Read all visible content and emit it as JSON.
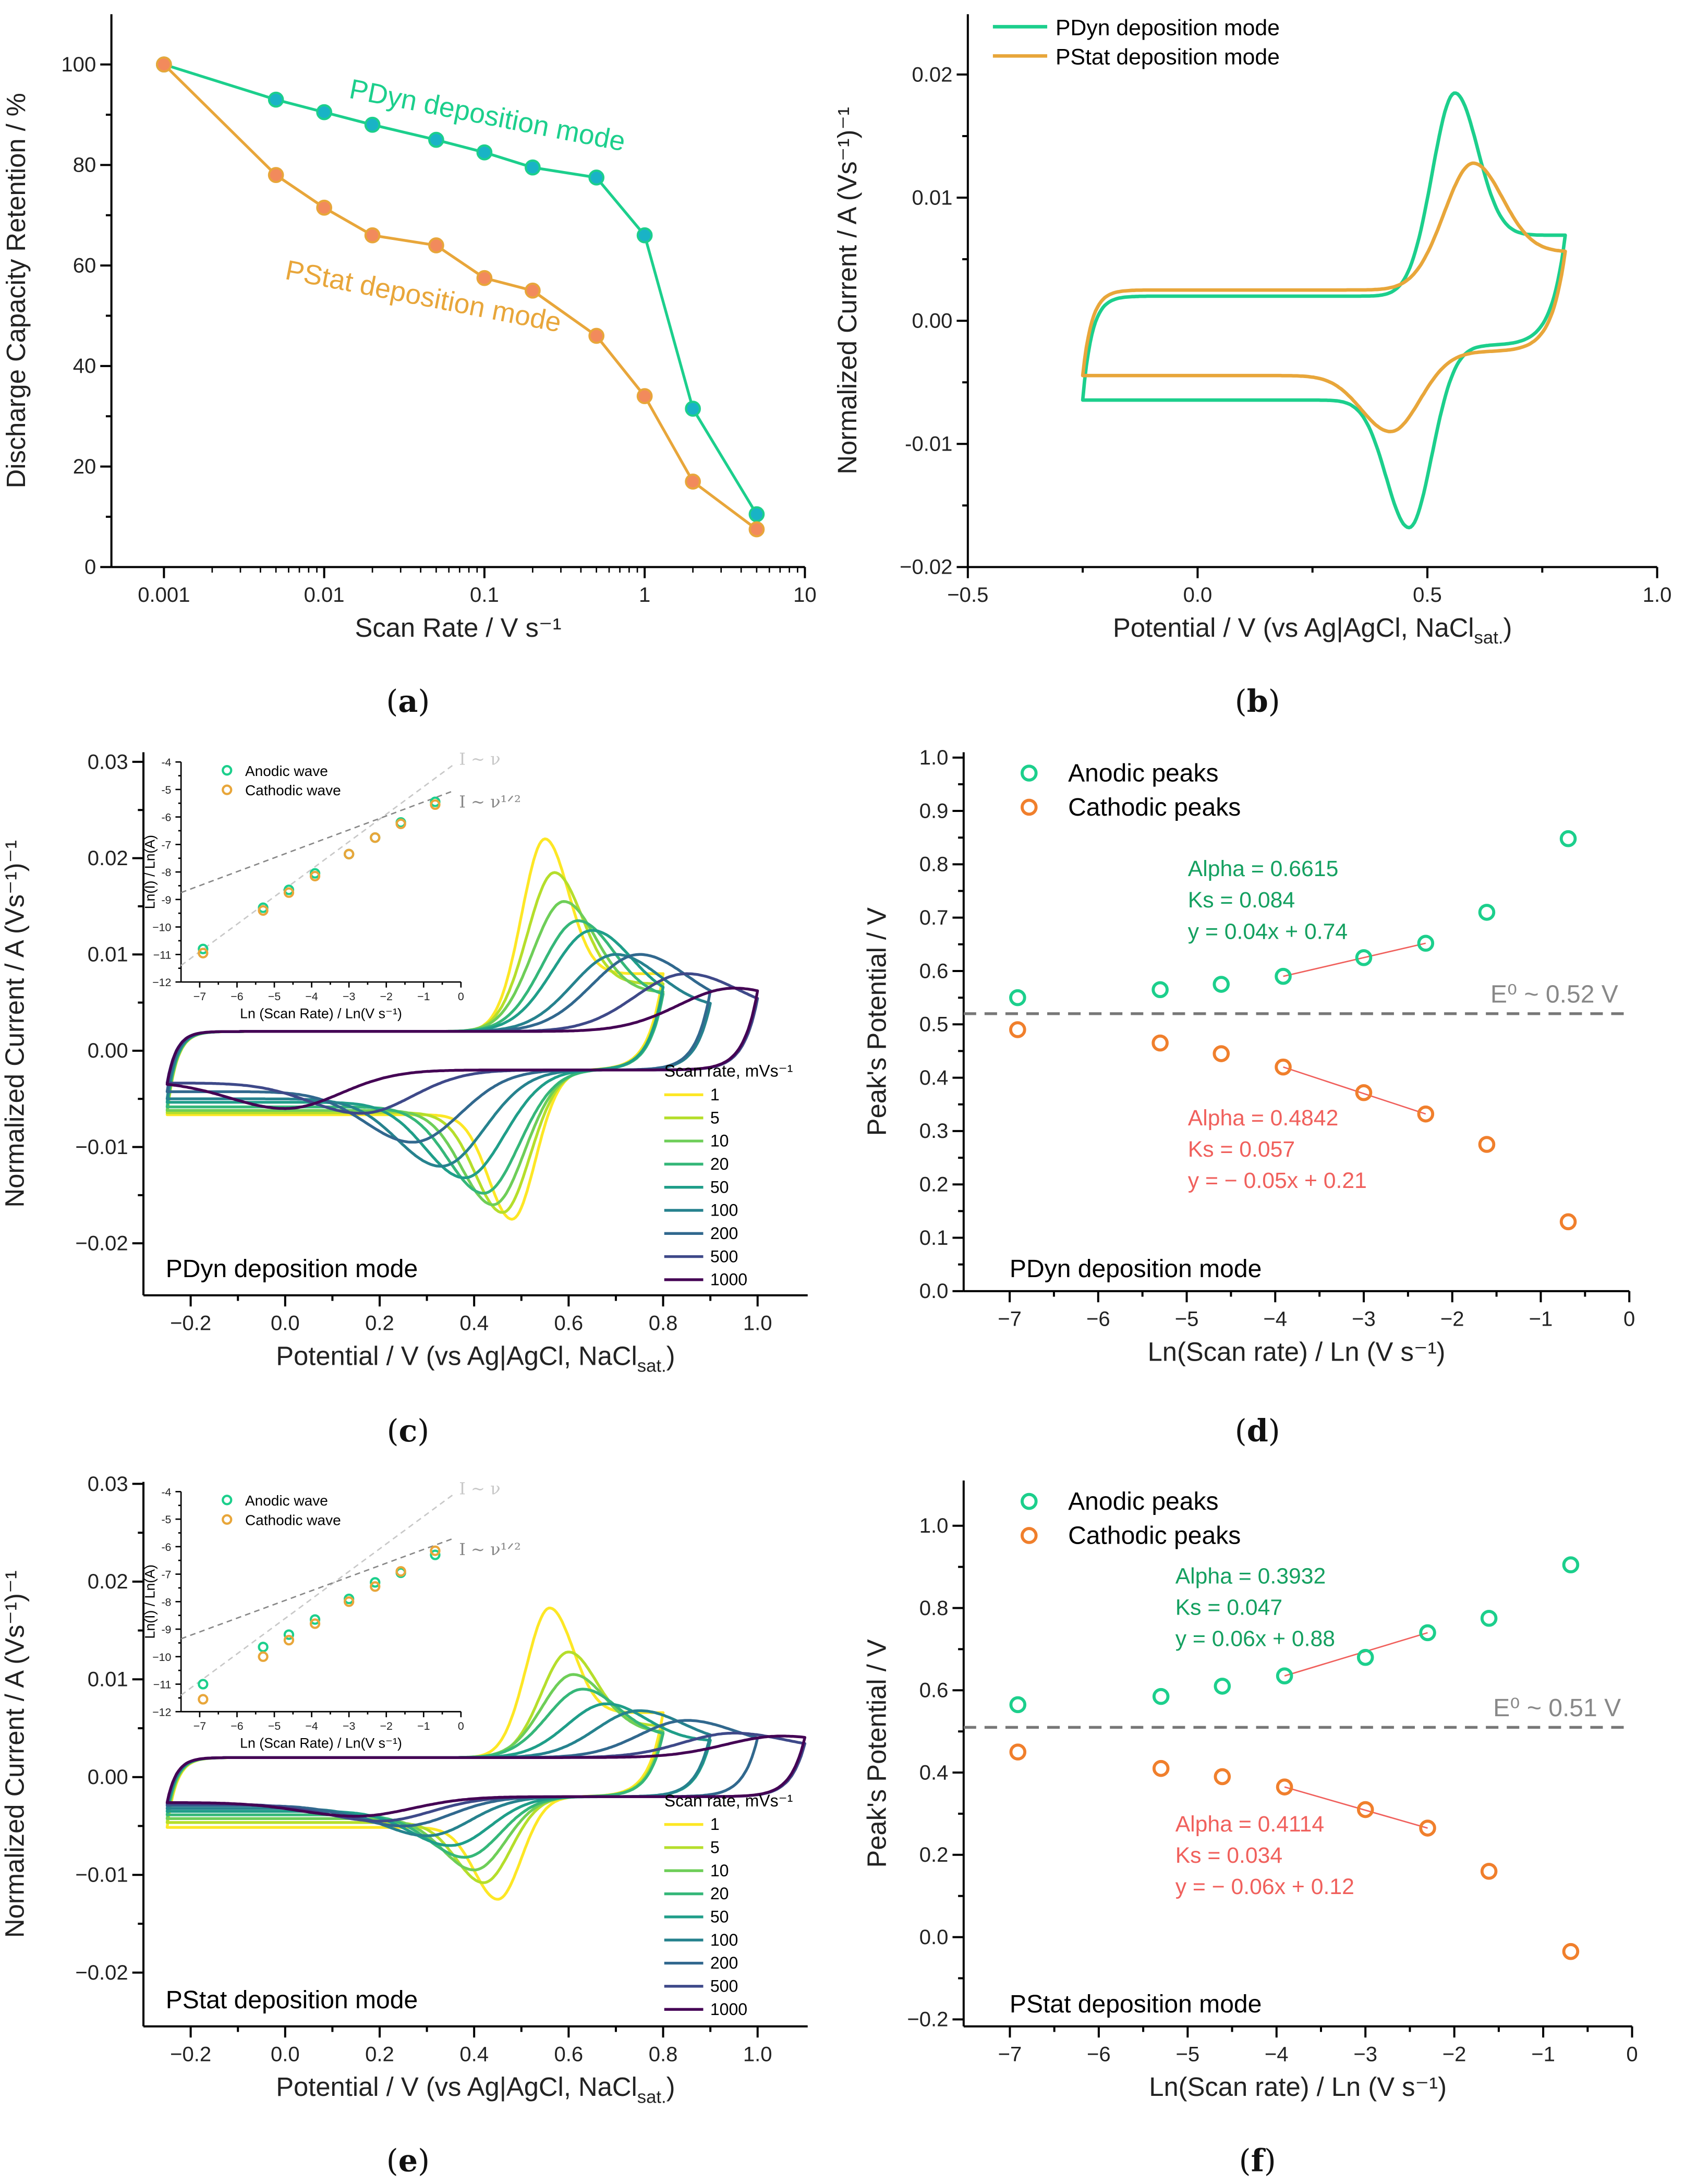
{
  "chart_data": [
    {
      "panel": [
        "(",
        "a",
        ")"
      ],
      "type": "line",
      "xscale": "log",
      "xlim": [
        0.00047,
        10
      ],
      "ylim": [
        0,
        110
      ],
      "xticks": [
        0.001,
        0.01,
        0.1,
        1,
        10
      ],
      "xtick_labels": [
        "0.001",
        "0.01",
        "0.1",
        "1",
        "10"
      ],
      "yticks": [
        0,
        20,
        40,
        60,
        80,
        100
      ],
      "ytick_labels": [
        "0",
        "20",
        "40",
        "60",
        "80",
        "100"
      ],
      "xlabel": "Scan Rate / V s⁻¹",
      "ylabel": "Discharge Capacity Retention / %",
      "x": [
        0.001,
        0.005,
        0.01,
        0.02,
        0.05,
        0.1,
        0.2,
        0.5,
        1,
        2,
        5
      ],
      "series": [
        {
          "name": "PDyn deposition mode",
          "color": "#1ccf8c",
          "marker_fill": "#19b3c6",
          "values": [
            100,
            93,
            90.5,
            88,
            85,
            82.5,
            79.5,
            77.5,
            66,
            31.5,
            10.5
          ]
        },
        {
          "name": "PStat deposition mode",
          "color": "#e8a63a",
          "marker_fill": "#f28a5c",
          "values": [
            100,
            78,
            71.5,
            66,
            64,
            57.5,
            55,
            46,
            34,
            17,
            7.5
          ]
        }
      ]
    },
    {
      "panel": [
        "(",
        "b",
        ")"
      ],
      "type": "line",
      "xlim": [
        -0.5,
        1.0
      ],
      "ylim": [
        -0.02,
        0.0249
      ],
      "xticks": [
        -0.5,
        0,
        0.5,
        1.0
      ],
      "xtick_labels": [
        "−0.5",
        "0.0",
        "0.5",
        "1.0"
      ],
      "yticks": [
        0.02,
        0.01,
        0,
        -0.01,
        -0.02
      ],
      "ytick_labels": [
        "0.02",
        "0.01",
        "0.00",
        "-0.01",
        "−0.02"
      ],
      "xlabel": [
        "Potential / V (vs Ag|AgCl, NaCl",
        "sat.",
        ")"
      ],
      "ylabel": "Normalized Current / A (Vs⁻¹)⁻¹",
      "legend": "top-left",
      "series": [
        {
          "name": "PDyn deposition mode",
          "color": "#1ccf8c",
          "start": -0.25,
          "vertex": 0.8,
          "Epa": 0.56,
          "Ipa": 0.0185,
          "Epc": 0.46,
          "Ipc": -0.0168,
          "cap": 0.002
        },
        {
          "name": "PStat deposition mode",
          "color": "#e8a63a",
          "start": -0.25,
          "vertex": 0.8,
          "Epa": 0.6,
          "Ipa": 0.0128,
          "Epc": 0.42,
          "Ipc": -0.009,
          "cap": 0.0025
        }
      ]
    },
    {
      "panel": [
        "(",
        "c",
        ")"
      ],
      "type": "line",
      "xlim": [
        -0.3,
        1.106
      ],
      "ylim": [
        -0.0254,
        0.031
      ],
      "xticks": [
        -0.2,
        0,
        0.2,
        0.4,
        0.6,
        0.8,
        1.0
      ],
      "xtick_labels": [
        "−0.2",
        "0.0",
        "0.2",
        "0.4",
        "0.6",
        "0.8",
        "1.0"
      ],
      "yticks": [
        0.03,
        0.02,
        0.01,
        0,
        -0.01,
        -0.02
      ],
      "ytick_labels": [
        "0.03",
        "0.02",
        "0.01",
        "0.00",
        "−0.01",
        "−0.02"
      ],
      "xlabel": [
        "Potential / V (vs Ag|AgCl, NaCl",
        "sat.",
        ")"
      ],
      "ylabel": "Normalized Current / A (Vs⁻¹)⁻¹",
      "annotation": "PDyn deposition mode",
      "legend_title": "Scan rate, mVs⁻¹",
      "series": [
        {
          "name": "1",
          "color": "#fde725",
          "start": -0.25,
          "vertex": 0.8,
          "Epa": 0.55,
          "Ipa": 0.022,
          "Epc": 0.48,
          "Ipc": -0.0175,
          "cap": 0.002
        },
        {
          "name": "5",
          "color": "#b5de2b",
          "start": -0.25,
          "vertex": 0.8,
          "Epa": 0.57,
          "Ipa": 0.0185,
          "Epc": 0.46,
          "Ipc": -0.0168,
          "cap": 0.002
        },
        {
          "name": "10",
          "color": "#6ece58",
          "start": -0.25,
          "vertex": 0.8,
          "Epa": 0.59,
          "Ipa": 0.0155,
          "Epc": 0.44,
          "Ipc": -0.016,
          "cap": 0.002
        },
        {
          "name": "20",
          "color": "#35b779",
          "start": -0.25,
          "vertex": 0.8,
          "Epa": 0.62,
          "Ipa": 0.0135,
          "Epc": 0.42,
          "Ipc": -0.0148,
          "cap": 0.002
        },
        {
          "name": "50",
          "color": "#1f9e89",
          "start": -0.25,
          "vertex": 0.8,
          "Epa": 0.65,
          "Ipa": 0.0125,
          "Epc": 0.38,
          "Ipc": -0.0132,
          "cap": 0.002
        },
        {
          "name": "100",
          "color": "#26828e",
          "start": -0.25,
          "vertex": 0.9,
          "Epa": 0.7,
          "Ipa": 0.01,
          "Epc": 0.33,
          "Ipc": -0.012,
          "cap": 0.002
        },
        {
          "name": "200",
          "color": "#31688e",
          "start": -0.25,
          "vertex": 0.9,
          "Epa": 0.75,
          "Ipa": 0.01,
          "Epc": 0.27,
          "Ipc": -0.0095,
          "cap": 0.002
        },
        {
          "name": "500",
          "color": "#3e4989",
          "start": -0.25,
          "vertex": 1.0,
          "Epa": 0.85,
          "Ipa": 0.008,
          "Epc": 0.16,
          "Ipc": -0.0065,
          "cap": 0.002
        },
        {
          "name": "1000",
          "color": "#440154",
          "start": -0.25,
          "vertex": 1.0,
          "Epa": 0.95,
          "Ipa": 0.0065,
          "Epc": 0.0,
          "Ipc": -0.006,
          "cap": 0.002
        }
      ],
      "inset": {
        "type": "scatter",
        "xlim": [
          -7.5,
          0
        ],
        "ylim": [
          -12,
          -4
        ],
        "xticks": [
          -7,
          -6,
          -5,
          -4,
          -3,
          -2,
          -1,
          0
        ],
        "xtick_labels": [
          "−7",
          "−6",
          "−5",
          "−4",
          "−3",
          "−2",
          "−1",
          "0"
        ],
        "yticks": [
          -4,
          -5,
          -6,
          -7,
          -8,
          -9,
          -10,
          -11,
          -12
        ],
        "ytick_labels": [
          "-4",
          "-5",
          "-6",
          "-7",
          "-8",
          "-9",
          "−10",
          "−11",
          "−12"
        ],
        "xlabel": "Ln (Scan Rate) / Ln(V s⁻¹)",
        "ylabel": "Ln(I) / Ln(A)",
        "x": [
          -6.91,
          -5.3,
          -4.61,
          -3.91,
          -3.0,
          -2.3,
          -1.61,
          -0.69
        ],
        "series": [
          {
            "name": "Anodic wave",
            "color": "#1ccf8c",
            "values": [
              -10.8,
              -9.3,
              -8.65,
              -8.05,
              -7.35,
              -6.75,
              -6.2,
              -5.45
            ]
          },
          {
            "name": "Cathodic wave",
            "color": "#e8a63a",
            "values": [
              -10.95,
              -9.4,
              -8.75,
              -8.15,
              -7.35,
              -6.75,
              -6.25,
              -5.55
            ]
          }
        ],
        "guides": [
          {
            "label": "I ~ ν",
            "color": "#c8c8c8",
            "from": [
              -7.5,
              -11.4
            ],
            "to": [
              -0.2,
              -4.1
            ]
          },
          {
            "label": "I ~ ν¹ᐟ²",
            "color": "#888888",
            "from": [
              -7.5,
              -8.75
            ],
            "to": [
              -0.2,
              -5.05
            ]
          }
        ]
      }
    },
    {
      "panel": [
        "(",
        "d",
        ")"
      ],
      "type": "scatter",
      "xlim": [
        -7.52,
        0
      ],
      "ylim": [
        0,
        1.01
      ],
      "xticks": [
        -7,
        -6,
        -5,
        -4,
        -3,
        -2,
        -1,
        0
      ],
      "xtick_labels": [
        "−7",
        "−6",
        "−5",
        "−4",
        "−3",
        "−2",
        "−1",
        "0"
      ],
      "yticks": [
        0,
        0.1,
        0.2,
        0.3,
        0.4,
        0.5,
        0.6,
        0.7,
        0.8,
        0.9,
        1.0
      ],
      "ytick_labels": [
        "0.0",
        "0.1",
        "0.2",
        "0.3",
        "0.4",
        "0.5",
        "0.6",
        "0.7",
        "0.8",
        "0.9",
        "1.0"
      ],
      "xlabel": "Ln(Scan rate) / Ln (V s⁻¹)",
      "ylabel": "Peak's Potential / V",
      "annotation": "PDyn deposition mode",
      "x": [
        -6.91,
        -5.3,
        -4.61,
        -3.91,
        -3.0,
        -2.3,
        -1.61,
        -0.69
      ],
      "series": [
        {
          "name": "Anodic peaks",
          "color": "#1ccf8c",
          "values": [
            0.55,
            0.565,
            0.575,
            0.59,
            0.625,
            0.652,
            0.71,
            0.848
          ],
          "fit": {
            "range": [
              -3.91,
              -2.3
            ],
            "slope": 0.04,
            "intercept": 0.74,
            "text": [
              "Alpha = 0.6615",
              "Ks = 0.084",
              "y = 0.04x + 0.74"
            ],
            "text_color": "#14a060"
          }
        },
        {
          "name": "Cathodic peaks",
          "color": "#f07f2c",
          "values": [
            0.49,
            0.465,
            0.445,
            0.42,
            0.372,
            0.332,
            0.275,
            0.13
          ],
          "fit": {
            "range": [
              -3.91,
              -2.3
            ],
            "slope": -0.05,
            "intercept": 0.21,
            "text": [
              "Alpha = 0.4842",
              "Ks = 0.057",
              "y = − 0.05x + 0.21"
            ],
            "text_color": "#f0605c"
          }
        }
      ],
      "E0": {
        "value": 0.52,
        "label": "E⁰ ~ 0.52 V"
      },
      "legend": "top-left"
    },
    {
      "panel": [
        "(",
        "e",
        ")"
      ],
      "type": "line",
      "xlim": [
        -0.3,
        1.106
      ],
      "ylim": [
        -0.0255,
        0.0302
      ],
      "xticks": [
        -0.2,
        0,
        0.2,
        0.4,
        0.6,
        0.8,
        1.0
      ],
      "xtick_labels": [
        "−0.2",
        "0.0",
        "0.2",
        "0.4",
        "0.6",
        "0.8",
        "1.0"
      ],
      "yticks": [
        0.03,
        0.02,
        0.01,
        0,
        -0.01,
        -0.02
      ],
      "ytick_labels": [
        "0.03",
        "0.02",
        "0.01",
        "0.00",
        "−0.01",
        "−0.02"
      ],
      "xlabel": [
        "Potential / V (vs Ag|AgCl, NaCl",
        "sat.",
        ")"
      ],
      "ylabel": "Normalized Current / A (Vs⁻¹)⁻¹",
      "annotation": "PStat deposition mode",
      "legend_title": "Scan rate, mVs⁻¹",
      "series": [
        {
          "name": "1",
          "color": "#fde725",
          "start": -0.25,
          "vertex": 0.8,
          "Epa": 0.56,
          "Ipa": 0.0173,
          "Epc": 0.45,
          "Ipc": -0.0125,
          "cap": 0.002
        },
        {
          "name": "5",
          "color": "#b5de2b",
          "start": -0.25,
          "vertex": 0.8,
          "Epa": 0.6,
          "Ipa": 0.0128,
          "Epc": 0.42,
          "Ipc": -0.0108,
          "cap": 0.002
        },
        {
          "name": "10",
          "color": "#6ece58",
          "start": -0.25,
          "vertex": 0.8,
          "Epa": 0.61,
          "Ipa": 0.0105,
          "Epc": 0.4,
          "Ipc": -0.0095,
          "cap": 0.002
        },
        {
          "name": "20",
          "color": "#35b779",
          "start": -0.25,
          "vertex": 0.8,
          "Epa": 0.63,
          "Ipa": 0.009,
          "Epc": 0.38,
          "Ipc": -0.0082,
          "cap": 0.002
        },
        {
          "name": "50",
          "color": "#1f9e89",
          "start": -0.25,
          "vertex": 0.9,
          "Epa": 0.68,
          "Ipa": 0.0075,
          "Epc": 0.35,
          "Ipc": -0.007,
          "cap": 0.002
        },
        {
          "name": "100",
          "color": "#26828e",
          "start": -0.25,
          "vertex": 0.9,
          "Epa": 0.75,
          "Ipa": 0.0068,
          "Epc": 0.3,
          "Ipc": -0.006,
          "cap": 0.002
        },
        {
          "name": "200",
          "color": "#31688e",
          "start": -0.25,
          "vertex": 1.0,
          "Epa": 0.85,
          "Ipa": 0.0058,
          "Epc": 0.25,
          "Ipc": -0.005,
          "cap": 0.002
        },
        {
          "name": "500",
          "color": "#3e4989",
          "start": -0.25,
          "vertex": 1.1,
          "Epa": 0.95,
          "Ipa": 0.0045,
          "Epc": 0.2,
          "Ipc": -0.0045,
          "cap": 0.002
        },
        {
          "name": "1000",
          "color": "#440154",
          "start": -0.25,
          "vertex": 1.1,
          "Epa": 1.05,
          "Ipa": 0.0042,
          "Epc": 0.15,
          "Ipc": -0.004,
          "cap": 0.002
        }
      ],
      "inset": {
        "type": "scatter",
        "xlim": [
          -7.5,
          0
        ],
        "ylim": [
          -12,
          -4
        ],
        "xticks": [
          -7,
          -6,
          -5,
          -4,
          -3,
          -2,
          -1,
          0
        ],
        "xtick_labels": [
          "−7",
          "−6",
          "−5",
          "−4",
          "−3",
          "−2",
          "−1",
          "0"
        ],
        "yticks": [
          -4,
          -5,
          -6,
          -7,
          -8,
          -9,
          -10,
          -11,
          -12
        ],
        "ytick_labels": [
          "-4",
          "-5",
          "-6",
          "-7",
          "-8",
          "-9",
          "−10",
          "−11",
          "−12"
        ],
        "xlabel": "Ln (Scan Rate) / Ln(V s⁻¹)",
        "ylabel": "Ln(I) / Ln(A)",
        "x": [
          -6.91,
          -5.3,
          -4.61,
          -3.91,
          -3.0,
          -2.3,
          -1.61,
          -0.69
        ],
        "series": [
          {
            "name": "Anodic wave",
            "color": "#1ccf8c",
            "values": [
              -11.0,
              -9.65,
              -9.2,
              -8.65,
              -7.9,
              -7.3,
              -6.95,
              -6.3
            ]
          },
          {
            "name": "Cathodic wave",
            "color": "#e8a63a",
            "values": [
              -11.55,
              -10.0,
              -9.4,
              -8.8,
              -8.0,
              -7.45,
              -6.9,
              -6.15
            ]
          }
        ],
        "guides": [
          {
            "label": "I ~ ν",
            "color": "#c8c8c8",
            "from": [
              -7.5,
              -11.4
            ],
            "to": [
              -0.2,
              -4.1
            ]
          },
          {
            "label": "I ~ ν¹ᐟ²",
            "color": "#888888",
            "from": [
              -7.5,
              -9.35
            ],
            "to": [
              -0.2,
              -5.7
            ]
          }
        ]
      }
    },
    {
      "panel": [
        "(",
        "f",
        ")"
      ],
      "type": "scatter",
      "xlim": [
        -7.52,
        0
      ],
      "ylim": [
        -0.217,
        1.11
      ],
      "xticks": [
        -7,
        -6,
        -5,
        -4,
        -3,
        -2,
        -1,
        0
      ],
      "xtick_labels": [
        "−7",
        "−6",
        "−5",
        "−4",
        "−3",
        "−2",
        "−1",
        "0"
      ],
      "yticks": [
        -0.2,
        0,
        0.2,
        0.4,
        0.6,
        0.8,
        1.0
      ],
      "ytick_labels": [
        "−0.2",
        "0.0",
        "0.2",
        "0.4",
        "0.6",
        "0.8",
        "1.0"
      ],
      "xlabel": "Ln(Scan rate) / Ln (V s⁻¹)",
      "ylabel": "Peak's Potential / V",
      "annotation": "PStat deposition mode",
      "x": [
        -6.91,
        -5.3,
        -4.61,
        -3.91,
        -3.0,
        -2.3,
        -1.61,
        -0.69
      ],
      "series": [
        {
          "name": "Anodic peaks",
          "color": "#1ccf8c",
          "values": [
            0.565,
            0.585,
            0.61,
            0.635,
            0.68,
            0.74,
            0.775,
            0.905
          ],
          "fit": {
            "range": [
              -3.91,
              -2.3
            ],
            "slope": 0.06,
            "intercept": 0.88,
            "text": [
              "Alpha = 0.3932",
              "Ks = 0.047",
              "y = 0.06x + 0.88"
            ],
            "text_color": "#14a060"
          }
        },
        {
          "name": "Cathodic peaks",
          "color": "#f07f2c",
          "values": [
            0.45,
            0.41,
            0.39,
            0.365,
            0.31,
            0.265,
            0.16,
            -0.035
          ],
          "fit": {
            "range": [
              -3.91,
              -2.3
            ],
            "slope": -0.06,
            "intercept": 0.12,
            "text": [
              "Alpha = 0.4114",
              "Ks = 0.034",
              "y = − 0.06x + 0.12"
            ],
            "text_color": "#f0605c"
          }
        }
      ],
      "E0": {
        "value": 0.51,
        "label": "E⁰ ~ 0.51 V"
      },
      "legend": "top-left"
    }
  ]
}
